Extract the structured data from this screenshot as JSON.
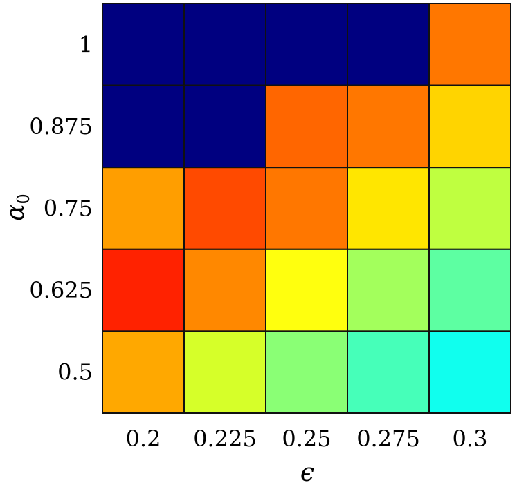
{
  "chart_data": {
    "type": "heatmap",
    "title": "",
    "xlabel": "ϵ",
    "ylabel": {
      "base": "α",
      "subscript": "0"
    },
    "x_categories": [
      "0.2",
      "0.225",
      "0.25",
      "0.275",
      "0.3"
    ],
    "y_categories": [
      "0.5",
      "0.625",
      "0.75",
      "0.875",
      "1"
    ],
    "colormap": "jet",
    "grid": true,
    "cells": [
      {
        "x": "0.2",
        "y": "1",
        "color": "#000080"
      },
      {
        "x": "0.225",
        "y": "1",
        "color": "#000080"
      },
      {
        "x": "0.25",
        "y": "1",
        "color": "#000080"
      },
      {
        "x": "0.275",
        "y": "1",
        "color": "#000080"
      },
      {
        "x": "0.3",
        "y": "1",
        "color": "#FF7700"
      },
      {
        "x": "0.2",
        "y": "0.875",
        "color": "#000080"
      },
      {
        "x": "0.225",
        "y": "0.875",
        "color": "#000080"
      },
      {
        "x": "0.25",
        "y": "0.875",
        "color": "#FF6600"
      },
      {
        "x": "0.275",
        "y": "0.875",
        "color": "#FF7700"
      },
      {
        "x": "0.3",
        "y": "0.875",
        "color": "#FFD400"
      },
      {
        "x": "0.2",
        "y": "0.75",
        "color": "#FF9E00"
      },
      {
        "x": "0.225",
        "y": "0.75",
        "color": "#FF4A00"
      },
      {
        "x": "0.25",
        "y": "0.75",
        "color": "#FF7700"
      },
      {
        "x": "0.275",
        "y": "0.75",
        "color": "#FFE600"
      },
      {
        "x": "0.3",
        "y": "0.75",
        "color": "#BFFF40"
      },
      {
        "x": "0.2",
        "y": "0.625",
        "color": "#FF2200"
      },
      {
        "x": "0.225",
        "y": "0.625",
        "color": "#FF8800"
      },
      {
        "x": "0.25",
        "y": "0.625",
        "color": "#FFFF0E"
      },
      {
        "x": "0.275",
        "y": "0.625",
        "color": "#A3FF5C"
      },
      {
        "x": "0.3",
        "y": "0.625",
        "color": "#5DFFA2"
      },
      {
        "x": "0.2",
        "y": "0.5",
        "color": "#FFA800"
      },
      {
        "x": "0.225",
        "y": "0.5",
        "color": "#D6FF29"
      },
      {
        "x": "0.25",
        "y": "0.5",
        "color": "#8AFF75"
      },
      {
        "x": "0.275",
        "y": "0.5",
        "color": "#46FFB9"
      },
      {
        "x": "0.3",
        "y": "0.5",
        "color": "#10FFEE"
      }
    ]
  }
}
